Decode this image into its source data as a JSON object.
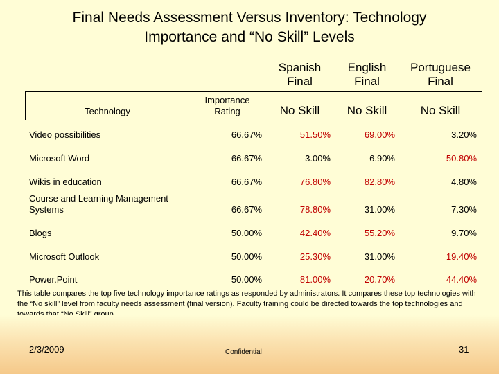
{
  "title_line1": "Final Needs Assessment Versus Inventory: Technology",
  "title_line2": "Importance and “No Skill” Levels",
  "headers": {
    "spanish": [
      "Spanish",
      "Final"
    ],
    "english": [
      "English",
      "Final"
    ],
    "portuguese": [
      "Portuguese",
      "Final"
    ],
    "technology": "Technology",
    "importance": [
      "Importance",
      "Rating"
    ],
    "no_skill": "No Skill"
  },
  "rows": [
    {
      "name": "Video possibilities",
      "importance": "66.67%",
      "spanish": "51.50%",
      "english": "69.00%",
      "portuguese": "3.20%"
    },
    {
      "name": "Microsoft Word",
      "importance": "66.67%",
      "spanish": "3.00%",
      "english": "6.90%",
      "portuguese": "50.80%"
    },
    {
      "name": "Wikis in education",
      "importance": "66.67%",
      "spanish": "76.80%",
      "english": "82.80%",
      "portuguese": "4.80%"
    },
    {
      "name": [
        "Course and Learning Management",
        "Systems"
      ],
      "importance": "66.67%",
      "spanish": "78.80%",
      "english": "31.00%",
      "portuguese": "7.30%"
    },
    {
      "name": "Blogs",
      "importance": "50.00%",
      "spanish": "42.40%",
      "english": "55.20%",
      "portuguese": "9.70%"
    },
    {
      "name": "Microsoft Outlook",
      "importance": "50.00%",
      "spanish": "25.30%",
      "english": "31.00%",
      "portuguese": "19.40%"
    },
    {
      "name": "Power.Point",
      "importance": "50.00%",
      "spanish": "81.00%",
      "english": "20.70%",
      "portuguese": "44.40%"
    }
  ],
  "note": "This table compares the top five technology importance ratings as responded by administrators.  It compares these top technologies with the “No skill” level from faculty needs assessment (final version).  Faculty training could be directed towards the top technologies and towards that “No Skill” group.",
  "footer": {
    "date": "2/3/2009",
    "confidential": "Confidential",
    "page": "31"
  },
  "colors": {
    "background": "#fffdd6",
    "highlight": "#c00000"
  }
}
